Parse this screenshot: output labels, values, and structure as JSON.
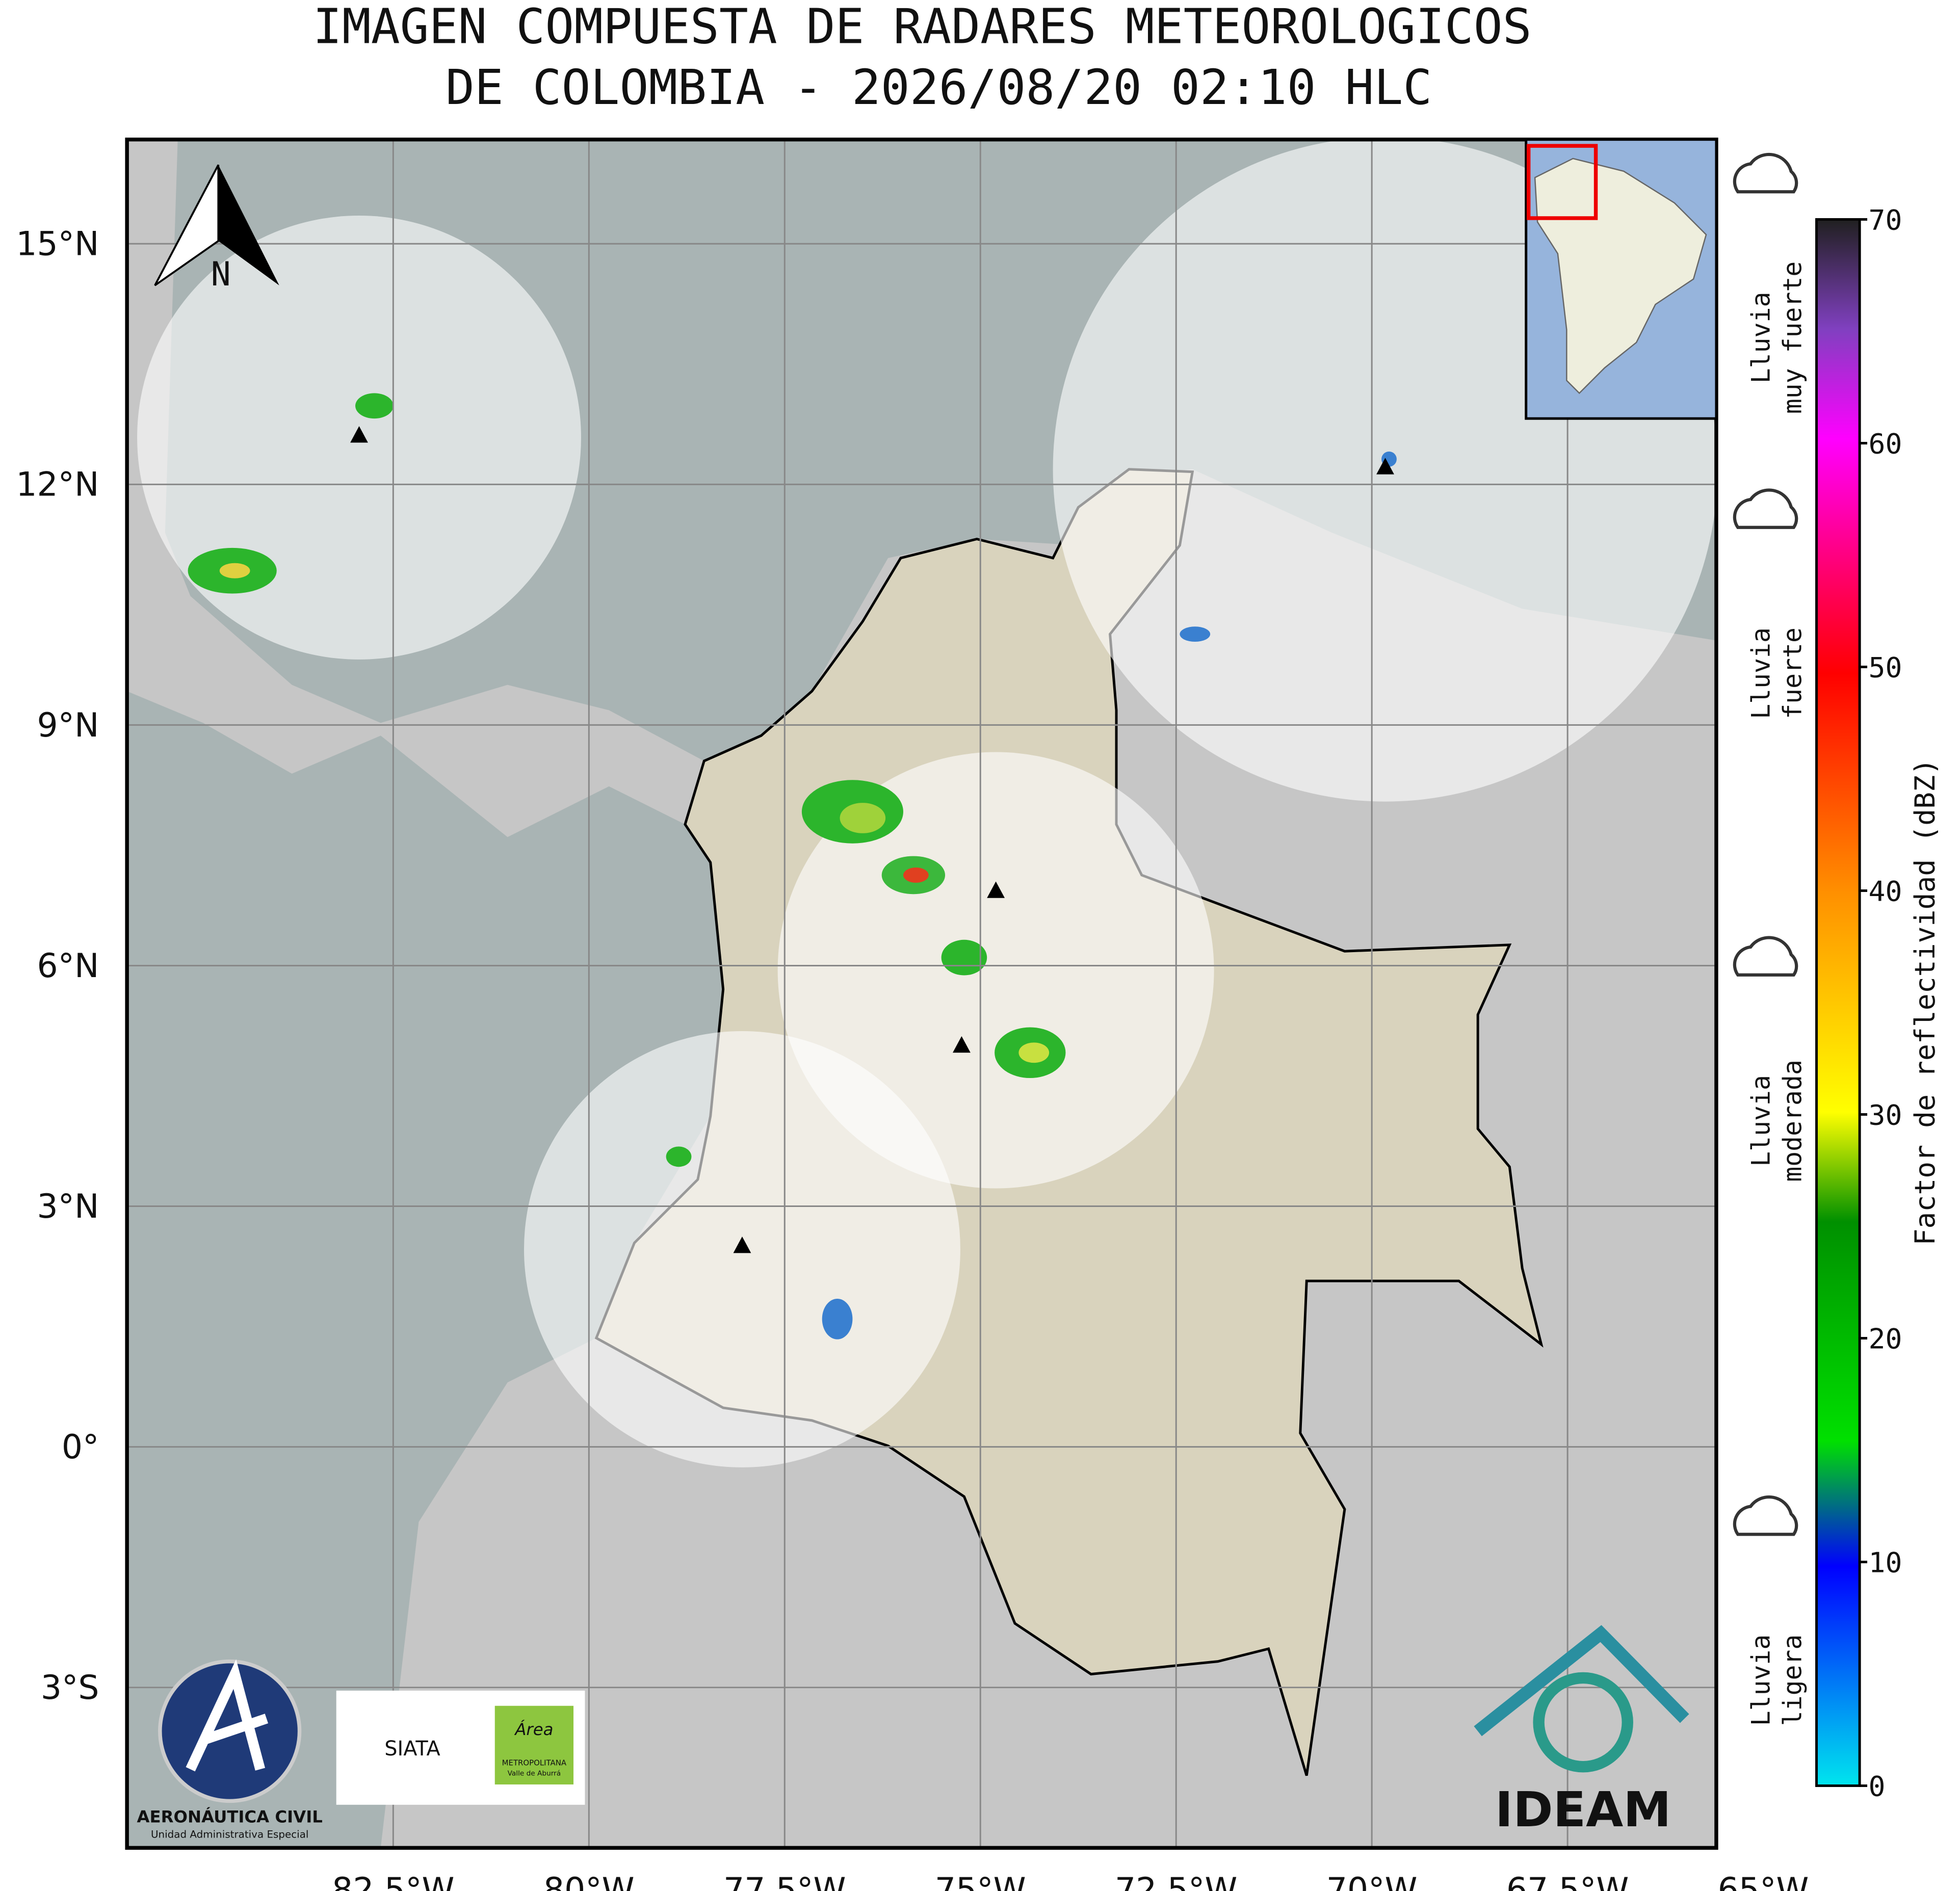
{
  "chart_data": {
    "type": "map",
    "title": [
      "IMAGEN COMPUESTA DE RADARES METEOROLOGICOS",
      "DE COLOMBIA - 2026/08/20 02:10 HLC"
    ],
    "xlim": [
      -85.9,
      -65.6
    ],
    "ylim": [
      -5.0,
      16.3
    ],
    "xticks": [
      {
        "value": -82.5,
        "label": "82.5°W"
      },
      {
        "value": -80,
        "label": "80°W"
      },
      {
        "value": -77.5,
        "label": "77.5°W"
      },
      {
        "value": -75,
        "label": "75°W"
      },
      {
        "value": -72.5,
        "label": "72.5°W"
      },
      {
        "value": -70,
        "label": "70°W"
      },
      {
        "value": -67.5,
        "label": "67.5°W"
      },
      {
        "value": -65,
        "label": "65°W"
      }
    ],
    "yticks": [
      {
        "value": 15,
        "label": "15°N"
      },
      {
        "value": 12,
        "label": "12°N"
      },
      {
        "value": 9,
        "label": "9°N"
      },
      {
        "value": 6,
        "label": "6°N"
      },
      {
        "value": 3,
        "label": "3°N"
      },
      {
        "value": 0,
        "label": "0°"
      },
      {
        "value": -3,
        "label": "3°S"
      }
    ],
    "grid": true,
    "north_label": "N",
    "colorbar": {
      "label": "Factor de reflectividad (dBZ)",
      "lim": [
        0,
        70
      ],
      "ticks": [
        0,
        10,
        20,
        30,
        40,
        50,
        60,
        70
      ]
    },
    "legend": [
      {
        "lines": [
          "Lluvia",
          "ligera"
        ],
        "level": 5
      },
      {
        "lines": [
          "Lluvia",
          "moderada"
        ],
        "level": 30
      },
      {
        "lines": [
          "Lluvia",
          "fuerte"
        ],
        "level": 50
      },
      {
        "lines": [
          "Lluvia",
          "muy fuerte"
        ],
        "level": 65
      }
    ],
    "logos": {
      "aeronautica": [
        "AERONÁUTICA CIVIL",
        "Unidad Administrativa Especial"
      ],
      "siata": "SIATA",
      "area": [
        "Área",
        "METROPOLITANA",
        "Valle de Aburrá"
      ],
      "ideam": "IDEAM"
    }
  }
}
